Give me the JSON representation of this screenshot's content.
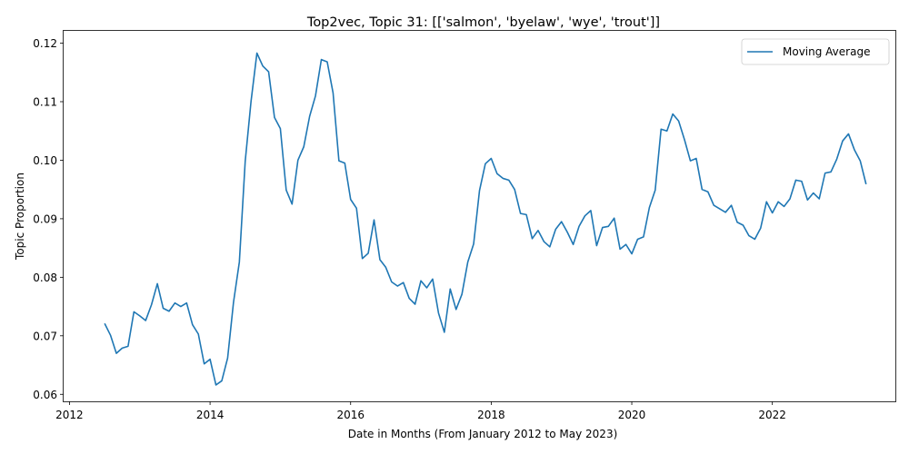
{
  "chart_data": {
    "type": "line",
    "title": "Top2vec, Topic 31: [['salmon', 'byelaw', 'wye', 'trout']]",
    "xlabel": "Date in Months (From January 2012 to May 2023)",
    "ylabel": "Topic Proportion",
    "xlim": [
      "2011-12",
      "2023-10"
    ],
    "ylim": [
      0.0588,
      0.1221
    ],
    "x_ticks": [
      {
        "label": "2012",
        "value": "2012-01"
      },
      {
        "label": "2014",
        "value": "2014-01"
      },
      {
        "label": "2016",
        "value": "2016-01"
      },
      {
        "label": "2018",
        "value": "2018-01"
      },
      {
        "label": "2020",
        "value": "2020-01"
      },
      {
        "label": "2022",
        "value": "2022-01"
      }
    ],
    "y_ticks": [
      {
        "label": "0.06",
        "value": 0.06
      },
      {
        "label": "0.07",
        "value": 0.07
      },
      {
        "label": "0.08",
        "value": 0.08
      },
      {
        "label": "0.09",
        "value": 0.09
      },
      {
        "label": "0.10",
        "value": 0.1
      },
      {
        "label": "0.11",
        "value": 0.11
      },
      {
        "label": "0.12",
        "value": 0.12
      }
    ],
    "grid": false,
    "legend_position": "top-right",
    "series": [
      {
        "name": "Moving Average",
        "color": "#1f77b4",
        "x": [
          "2012-07",
          "2012-08",
          "2012-09",
          "2012-10",
          "2012-11",
          "2012-12",
          "2013-01",
          "2013-02",
          "2013-03",
          "2013-04",
          "2013-05",
          "2013-06",
          "2013-07",
          "2013-08",
          "2013-09",
          "2013-10",
          "2013-11",
          "2013-12",
          "2014-01",
          "2014-02",
          "2014-03",
          "2014-04",
          "2014-05",
          "2014-06",
          "2014-07",
          "2014-08",
          "2014-09",
          "2014-10",
          "2014-11",
          "2014-12",
          "2015-01",
          "2015-02",
          "2015-03",
          "2015-04",
          "2015-05",
          "2015-06",
          "2015-07",
          "2015-08",
          "2015-09",
          "2015-10",
          "2015-11",
          "2015-12",
          "2016-01",
          "2016-02",
          "2016-03",
          "2016-04",
          "2016-05",
          "2016-06",
          "2016-07",
          "2016-08",
          "2016-09",
          "2016-10",
          "2016-11",
          "2016-12",
          "2017-01",
          "2017-02",
          "2017-03",
          "2017-04",
          "2017-05",
          "2017-06",
          "2017-07",
          "2017-08",
          "2017-09",
          "2017-10",
          "2017-11",
          "2017-12",
          "2018-01",
          "2018-02",
          "2018-03",
          "2018-04",
          "2018-05",
          "2018-06",
          "2018-07",
          "2018-08",
          "2018-09",
          "2018-10",
          "2018-11",
          "2018-12",
          "2019-01",
          "2019-02",
          "2019-03",
          "2019-04",
          "2019-05",
          "2019-06",
          "2019-07",
          "2019-08",
          "2019-09",
          "2019-10",
          "2019-11",
          "2019-12",
          "2020-01",
          "2020-02",
          "2020-03",
          "2020-04",
          "2020-05",
          "2020-06",
          "2020-07",
          "2020-08",
          "2020-09",
          "2020-10",
          "2020-11",
          "2020-12",
          "2021-01",
          "2021-02",
          "2021-03",
          "2021-04",
          "2021-05",
          "2021-06",
          "2021-07",
          "2021-08",
          "2021-09",
          "2021-10",
          "2021-11",
          "2021-12",
          "2022-01",
          "2022-02",
          "2022-03",
          "2022-04",
          "2022-05",
          "2022-06",
          "2022-07",
          "2022-08",
          "2022-09",
          "2022-10",
          "2022-11",
          "2022-12",
          "2023-01",
          "2023-02",
          "2023-03",
          "2023-04",
          "2023-05"
        ],
        "values": [
          0.0721,
          0.0701,
          0.067,
          0.0679,
          0.0682,
          0.0741,
          0.0734,
          0.0726,
          0.0753,
          0.0789,
          0.0747,
          0.0742,
          0.0756,
          0.075,
          0.0756,
          0.0719,
          0.0703,
          0.0652,
          0.066,
          0.0616,
          0.0623,
          0.0662,
          0.0757,
          0.0826,
          0.0998,
          0.1101,
          0.1183,
          0.1161,
          0.1151,
          0.1073,
          0.1054,
          0.0949,
          0.0925,
          0.1,
          0.1023,
          0.1075,
          0.111,
          0.1172,
          0.1168,
          0.1115,
          0.0999,
          0.0995,
          0.0933,
          0.0918,
          0.0832,
          0.0841,
          0.0898,
          0.083,
          0.0817,
          0.0792,
          0.0785,
          0.0791,
          0.0764,
          0.0754,
          0.0794,
          0.0782,
          0.0797,
          0.0739,
          0.0706,
          0.078,
          0.0745,
          0.0771,
          0.0826,
          0.0857,
          0.0948,
          0.0994,
          0.1003,
          0.0977,
          0.0969,
          0.0966,
          0.095,
          0.0909,
          0.0907,
          0.0866,
          0.088,
          0.0861,
          0.0852,
          0.0882,
          0.0895,
          0.0877,
          0.0856,
          0.0887,
          0.0905,
          0.0914,
          0.0854,
          0.0885,
          0.0887,
          0.0901,
          0.0848,
          0.0856,
          0.084,
          0.0865,
          0.0869,
          0.0919,
          0.0949,
          0.1053,
          0.105,
          0.1079,
          0.1067,
          0.1035,
          0.0999,
          0.1003,
          0.095,
          0.0946,
          0.0923,
          0.0917,
          0.0911,
          0.0923,
          0.0894,
          0.0889,
          0.0871,
          0.0865,
          0.0884,
          0.0929,
          0.091,
          0.0929,
          0.0921,
          0.0934,
          0.0966,
          0.0964,
          0.0932,
          0.0944,
          0.0934,
          0.0978,
          0.098,
          0.1002,
          0.1033,
          0.1045,
          0.1018,
          0.0999,
          0.0959
        ]
      }
    ]
  }
}
